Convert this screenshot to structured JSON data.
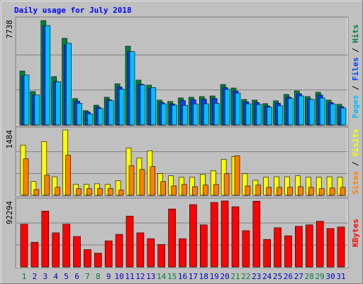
{
  "chart_data": [
    {
      "type": "bar",
      "title": "Daily usage for July 2018",
      "ylim": [
        0,
        7738
      ],
      "yticks": [
        7738
      ],
      "legend_separator": " / ",
      "series": [
        {
          "name": "Hits",
          "color": "#008040",
          "values": [
            3970,
            2460,
            7690,
            3560,
            6380,
            1940,
            1050,
            1460,
            2040,
            3030,
            5800,
            3300,
            2930,
            1830,
            1730,
            1990,
            2040,
            2090,
            2140,
            2980,
            2720,
            1880,
            1830,
            1570,
            1780,
            2250,
            2510,
            2090,
            2410,
            1830,
            1520
          ]
        },
        {
          "name": "Files",
          "color": "#0040ff",
          "values": [
            3600,
            2200,
            7300,
            3200,
            5900,
            1750,
            950,
            1300,
            1850,
            2800,
            5400,
            3000,
            2700,
            1650,
            1550,
            1800,
            1850,
            1900,
            1950,
            2750,
            2500,
            1700,
            1650,
            1400,
            1600,
            2050,
            2300,
            1900,
            2200,
            1650,
            1350
          ]
        },
        {
          "name": "Pages",
          "color": "#00c0ff",
          "values": [
            3680,
            2210,
            7320,
            3180,
            6020,
            1600,
            820,
            1210,
            1800,
            2640,
            5410,
            2950,
            2760,
            1560,
            1460,
            1450,
            1550,
            1560,
            1600,
            2620,
            2350,
            1560,
            1510,
            1310,
            1420,
            1950,
            2140,
            1880,
            1990,
            1540,
            1250
          ]
        }
      ]
    },
    {
      "type": "bar",
      "ylim": [
        0,
        1484
      ],
      "yticks": [
        1484
      ],
      "legend_separator": " / ",
      "series": [
        {
          "name": "Visits",
          "color": "#ffff00",
          "values": [
            1140,
            310,
            1220,
            420,
            1484,
            245,
            245,
            260,
            245,
            330,
            1075,
            850,
            1010,
            490,
            440,
            410,
            410,
            470,
            555,
            815,
            880,
            490,
            340,
            410,
            420,
            420,
            440,
            410,
            410,
            420,
            410
          ]
        },
        {
          "name": "Sites",
          "color": "#ff8000",
          "values": [
            830,
            130,
            455,
            180,
            910,
            150,
            150,
            150,
            150,
            115,
            670,
            585,
            650,
            310,
            210,
            245,
            195,
            230,
            245,
            490,
            895,
            210,
            230,
            180,
            180,
            180,
            195,
            180,
            150,
            165,
            180
          ]
        }
      ]
    },
    {
      "type": "bar",
      "ylim": [
        0,
        92294
      ],
      "yticks": [
        92294
      ],
      "categories": [
        "1",
        "2",
        "3",
        "4",
        "5",
        "6",
        "7",
        "8",
        "9",
        "10",
        "11",
        "12",
        "13",
        "14",
        "15",
        "16",
        "17",
        "18",
        "19",
        "20",
        "21",
        "22",
        "23",
        "24",
        "25",
        "26",
        "27",
        "28",
        "29",
        "30",
        "31"
      ],
      "category_colors": [
        "#008040",
        "#0000c0",
        "#0000c0",
        "#0000c0",
        "#0000c0",
        "#0000c0",
        "#008040",
        "#008040",
        "#0000c0",
        "#0000c0",
        "#0000c0",
        "#0000c0",
        "#0000c0",
        "#008040",
        "#008040",
        "#0000c0",
        "#0000c0",
        "#0000c0",
        "#0000c0",
        "#0000c0",
        "#008040",
        "#008040",
        "#0000c0",
        "#0000c0",
        "#0000c0",
        "#0000c0",
        "#0000c0",
        "#008040",
        "#008040",
        "#0000c0",
        "#0000c0"
      ],
      "series": [
        {
          "name": "KBytes",
          "color": "#ff0000",
          "values": [
            59800,
            34500,
            78100,
            47700,
            59800,
            42600,
            24300,
            19300,
            36500,
            45600,
            71000,
            47700,
            39500,
            31400,
            81100,
            39500,
            87200,
            58800,
            90200,
            92294,
            84200,
            50700,
            92000,
            38500,
            54800,
            43600,
            56800,
            58800,
            63900,
            53700,
            55800
          ]
        }
      ]
    }
  ]
}
